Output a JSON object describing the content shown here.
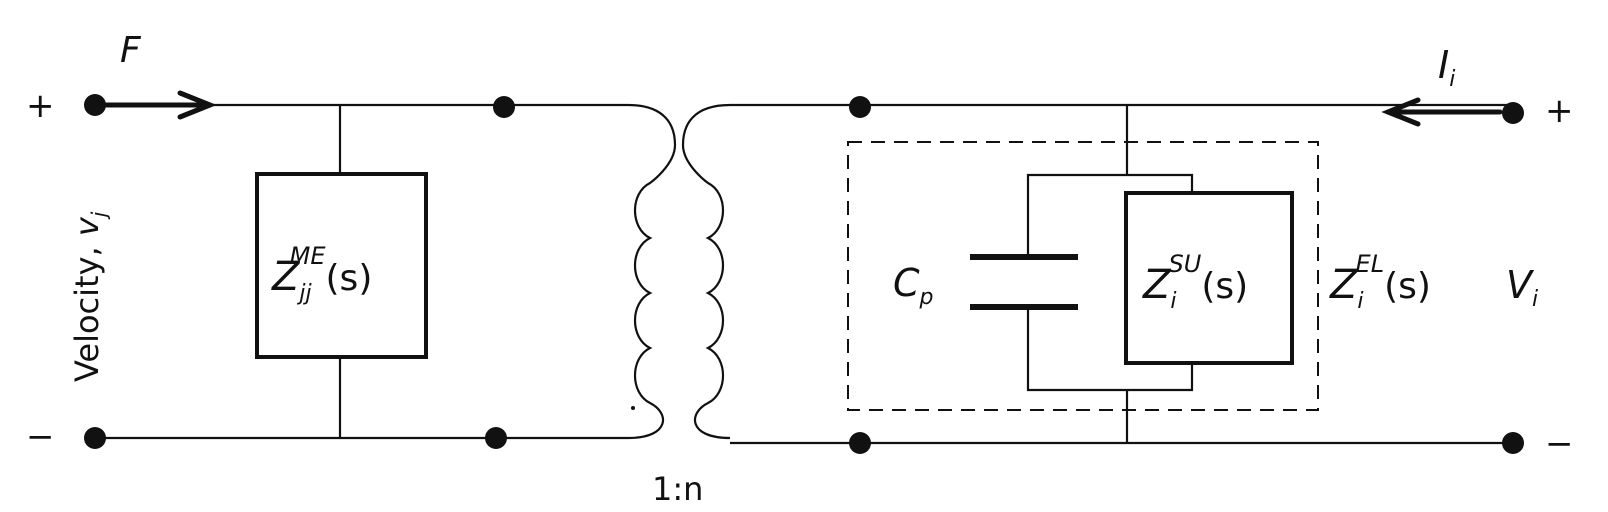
{
  "labels": {
    "force": "F",
    "current_main": "I",
    "current_sub": "i",
    "terminal_plus_left": "+",
    "terminal_minus_left": "−",
    "terminal_plus_right": "+",
    "terminal_minus_right": "−",
    "velocity_text": "Velocity, ",
    "velocity_var": "v",
    "velocity_sub": "j",
    "zme_main": "Z",
    "zme_sub": "jj",
    "zme_sup": "ME",
    "zme_arg": "(s)",
    "cp_main": "C",
    "cp_sub": "p",
    "zsu_main": "Z",
    "zsu_sub": "i",
    "zsu_sup": "SU",
    "zsu_arg": "(s)",
    "zel_main": "Z",
    "zel_sub": "i",
    "zel_sup": "EL",
    "zel_arg": "(s)",
    "voltage_main": "V",
    "voltage_sub": "i",
    "ratio": "1:n"
  }
}
